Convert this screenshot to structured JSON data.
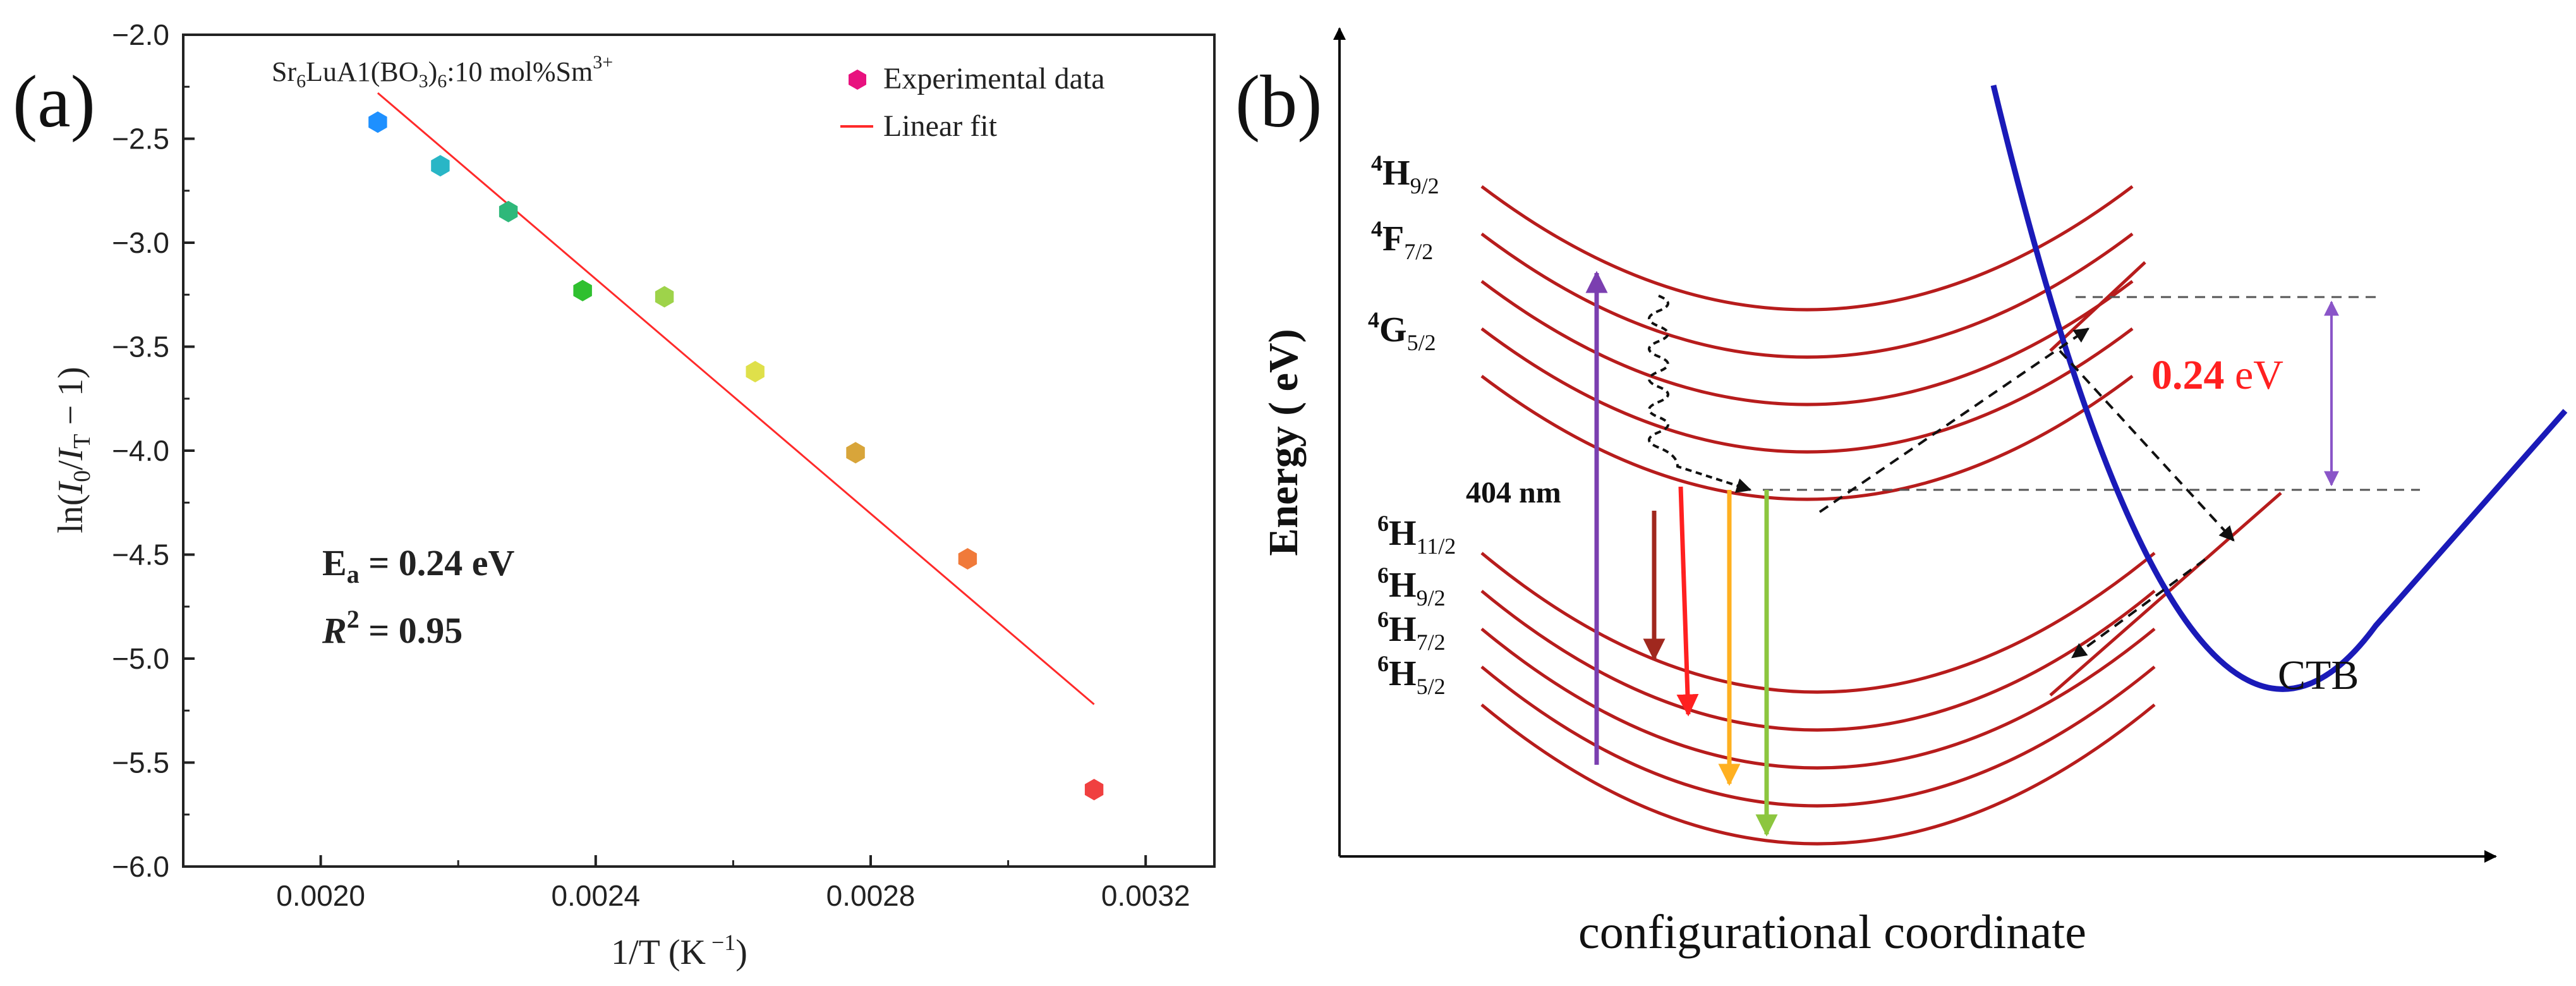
{
  "panel_a": {
    "label": "(a)",
    "compound": {
      "base": "Sr",
      "s1": "6",
      "mid": "LuA1(BO",
      "s2": "3",
      "s3": ")",
      "s4": "6",
      "tail": ":10 mol%Sm",
      "sup": "3+"
    },
    "legend": {
      "experimental": "Experimental data",
      "fit": "Linear fit"
    },
    "annotation": {
      "ea_main": "E",
      "ea_sub": "a",
      "ea_rest": " = 0.24 eV",
      "r2_main": "R",
      "r2_sup": "2",
      "r2_rest": " = 0.95"
    },
    "ylabel": {
      "p1": "ln(",
      "i0": "I",
      "s0": "0",
      "slash": "/",
      "it": "I",
      "st": "T",
      "p2": " − 1)"
    },
    "xlabel": {
      "main": "1/T (K",
      "sup": " −1",
      "close": ")"
    }
  },
  "chart_data": {
    "type": "scatter",
    "title": "",
    "xlabel": "1/T (K −1)",
    "ylabel": "ln(I0/IT − 1)",
    "xlim": [
      0.0018,
      0.0033
    ],
    "ylim": [
      -6.0,
      -2.0
    ],
    "xticks": [
      0.002,
      0.0024,
      0.0028,
      0.0032
    ],
    "xtick_labels": [
      "0.0020",
      "0.0024",
      "0.0028",
      "0.0032"
    ],
    "yticks": [
      -2.0,
      -2.5,
      -3.0,
      -3.5,
      -4.0,
      -4.5,
      -5.0,
      -5.5,
      -6.0
    ],
    "ytick_labels": [
      "−2.0",
      "−2.5",
      "−3.0",
      "−3.5",
      "−4.0",
      "−4.5",
      "−5.0",
      "−5.5",
      "−6.0"
    ],
    "series": [
      {
        "name": "Experimental data",
        "x": [
          0.002083,
          0.002174,
          0.002273,
          0.002381,
          0.0025,
          0.002632,
          0.002778,
          0.002941,
          0.003125
        ],
        "y": [
          -2.42,
          -2.63,
          -2.85,
          -3.23,
          -3.26,
          -3.62,
          -4.01,
          -4.52,
          -5.63
        ],
        "colors": [
          "#1e90ff",
          "#29b6c6",
          "#2eb87a",
          "#2fc02f",
          "#9ed34a",
          "#dfe04a",
          "#d8a53a",
          "#f07a3a",
          "#f04040"
        ]
      },
      {
        "name": "Linear fit",
        "x": [
          0.002083,
          0.003125
        ],
        "y": [
          -2.28,
          -5.22
        ],
        "color": "#ff2a2a"
      }
    ],
    "legend_position": "top-right",
    "grid": false
  },
  "panel_b": {
    "label": "(b)",
    "yaxis": "Energy ( eV)",
    "xaxis": "configurational coordinate",
    "levels_upper": [
      {
        "letter": "4",
        "term": "H",
        "sub": "9/2"
      },
      {
        "letter": "4",
        "term": "F",
        "sub": "7/2"
      },
      {
        "letter": "4",
        "term": "G",
        "sub": "5/2"
      }
    ],
    "levels_lower": [
      {
        "letter": "6",
        "term": "H",
        "sub": "11/2"
      },
      {
        "letter": "6",
        "term": "H",
        "sub": "9/2"
      },
      {
        "letter": "6",
        "term": "H",
        "sub": "7/2"
      },
      {
        "letter": "6",
        "term": "H",
        "sub": "5/2"
      }
    ],
    "excitation": "404 nm",
    "barrier_value": "0.24",
    "barrier_unit": " eV",
    "ctb": "CTB",
    "colors": {
      "parabola": "#b71c1c",
      "ctb": "#1a1ab8",
      "excitation_arrow": "#7b3fb0",
      "emission_1": "#a0281e",
      "emission_2": "#ff2020",
      "emission_3": "#ffb020",
      "emission_4": "#8cc63f",
      "barrier_arrow": "#8a55c8",
      "barrier_text": "#ff2020"
    }
  }
}
